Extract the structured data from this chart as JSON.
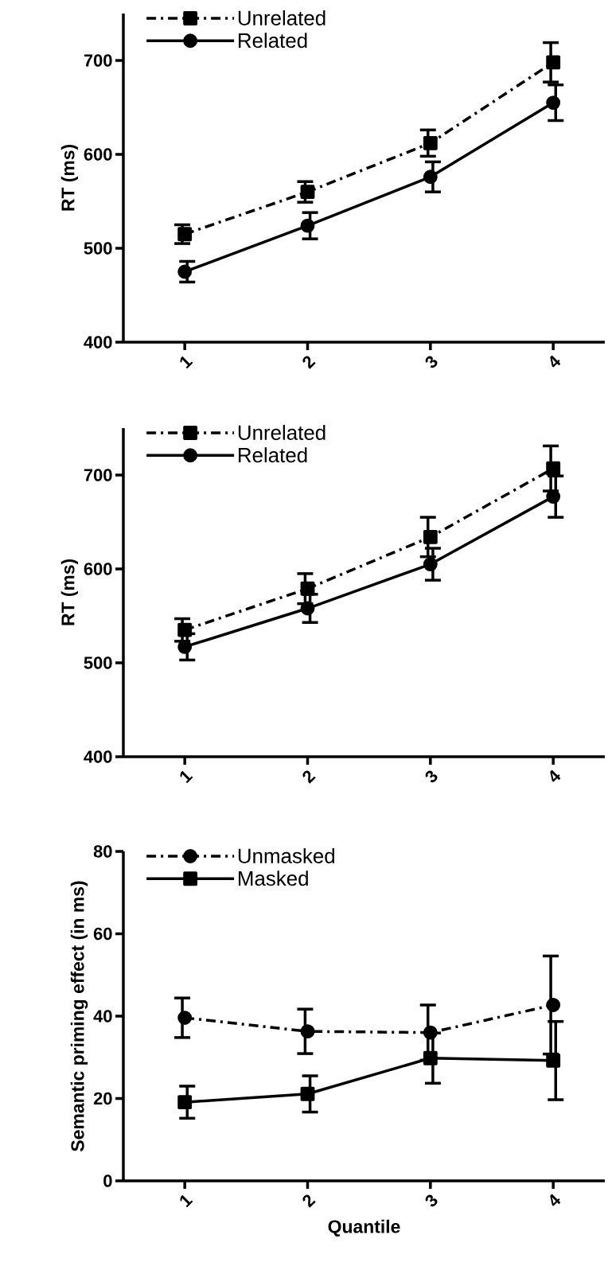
{
  "chart_data": [
    {
      "type": "line",
      "categories": [
        "1",
        "2",
        "3",
        "4"
      ],
      "ylabel": "RT (ms)",
      "ylim": [
        400,
        750
      ],
      "yticks": [
        400,
        500,
        600,
        700
      ],
      "legend": "top left",
      "series": [
        {
          "name": "Unrelated",
          "color": "#000000",
          "marker": "square",
          "line_style": "dashed",
          "values": [
            515,
            560,
            612,
            698
          ],
          "errors": [
            10,
            11,
            14,
            21
          ]
        },
        {
          "name": "Related",
          "color": "#000000",
          "marker": "circle",
          "line_style": "solid",
          "values": [
            475,
            524,
            576,
            655
          ],
          "errors": [
            11,
            14,
            16,
            19
          ]
        }
      ]
    },
    {
      "type": "line",
      "categories": [
        "1",
        "2",
        "3",
        "4"
      ],
      "ylabel": "RT (ms)",
      "ylim": [
        400,
        750
      ],
      "yticks": [
        400,
        500,
        600,
        700
      ],
      "legend": "top left",
      "series": [
        {
          "name": "Unrelated",
          "color": "#000000",
          "marker": "square",
          "line_style": "dashed",
          "values": [
            535,
            579,
            634,
            707
          ],
          "errors": [
            12,
            16,
            21,
            24
          ]
        },
        {
          "name": "Related",
          "color": "#000000",
          "marker": "circle",
          "line_style": "solid",
          "values": [
            517,
            558,
            605,
            677
          ],
          "errors": [
            14,
            15,
            17,
            22
          ]
        }
      ]
    },
    {
      "type": "line",
      "categories": [
        "1",
        "2",
        "3",
        "4"
      ],
      "xlabel": "Quantile",
      "ylabel": "Semantic priming effect (in ms)",
      "ylim": [
        0,
        80
      ],
      "yticks": [
        0,
        20,
        40,
        60,
        80
      ],
      "legend": "top left",
      "series": [
        {
          "name": "Unmasked",
          "color": "#000000",
          "marker": "circle",
          "line_style": "dashed",
          "values": [
            39.6,
            36.3,
            36.0,
            42.7
          ],
          "errors": [
            4.8,
            5.4,
            6.7,
            11.9
          ]
        },
        {
          "name": "Masked",
          "color": "#000000",
          "marker": "square",
          "line_style": "solid",
          "values": [
            19.1,
            21.1,
            29.8,
            29.2
          ],
          "errors": [
            3.9,
            4.4,
            6.1,
            9.5
          ]
        }
      ]
    }
  ]
}
